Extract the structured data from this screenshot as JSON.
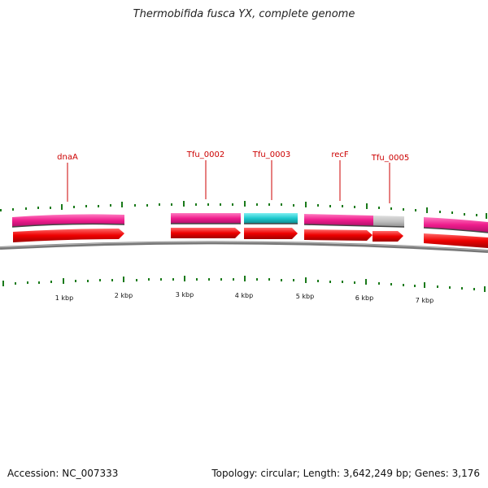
{
  "title": "Thermobifida fusca YX, complete genome",
  "footer": {
    "accession": "Accession: NC_007333",
    "summary": "Topology: circular; Length: 3,642,249 bp; Genes: 3,176"
  },
  "colors": {
    "gene_track": "#ee1c8c",
    "cds_arrow": "#ee0000",
    "ticks": "#1a7a1a",
    "backbone": "#777777",
    "label": "#cc0000",
    "cyan_feature": "#1cc7cc",
    "gray_feature": "#c0c0c0"
  },
  "gene_labels": [
    "dnaA",
    "Tfu_0002",
    "Tfu_0003",
    "recF",
    "Tfu_0005"
  ],
  "kbp_labels": [
    "1 kbp",
    "2 kbp",
    "3 kbp",
    "4 kbp",
    "5 kbp",
    "6 kbp",
    "7 kbp"
  ]
}
